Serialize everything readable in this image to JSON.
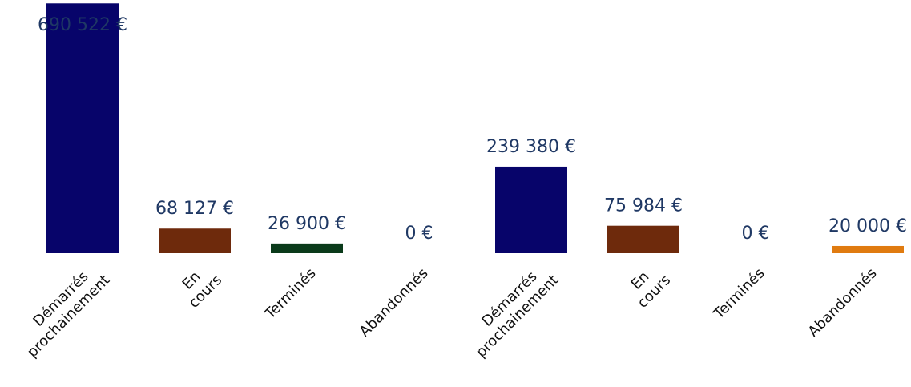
{
  "chart_data": {
    "type": "bar",
    "categories": [
      "Démarrés prochainement",
      "En cours",
      "Terminés",
      "Abandonnés",
      "Démarrés prochainement",
      "En cours",
      "Terminés",
      "Abandonnés"
    ],
    "values": [
      690522,
      68127,
      26900,
      0,
      239380,
      75984,
      0,
      20000
    ],
    "value_labels": [
      "690 522 €",
      "68 127 €",
      "26 900 €",
      "0 €",
      "239 380 €",
      "75 984 €",
      "0 €",
      "20 000 €"
    ],
    "colors": [
      "#07046a",
      "#6e2a0c",
      "#0a3a1a",
      "#e07b10",
      "#07046a",
      "#6e2a0c",
      "#0a3a1a",
      "#e07b10"
    ],
    "ylim": [
      0,
      700000
    ]
  }
}
